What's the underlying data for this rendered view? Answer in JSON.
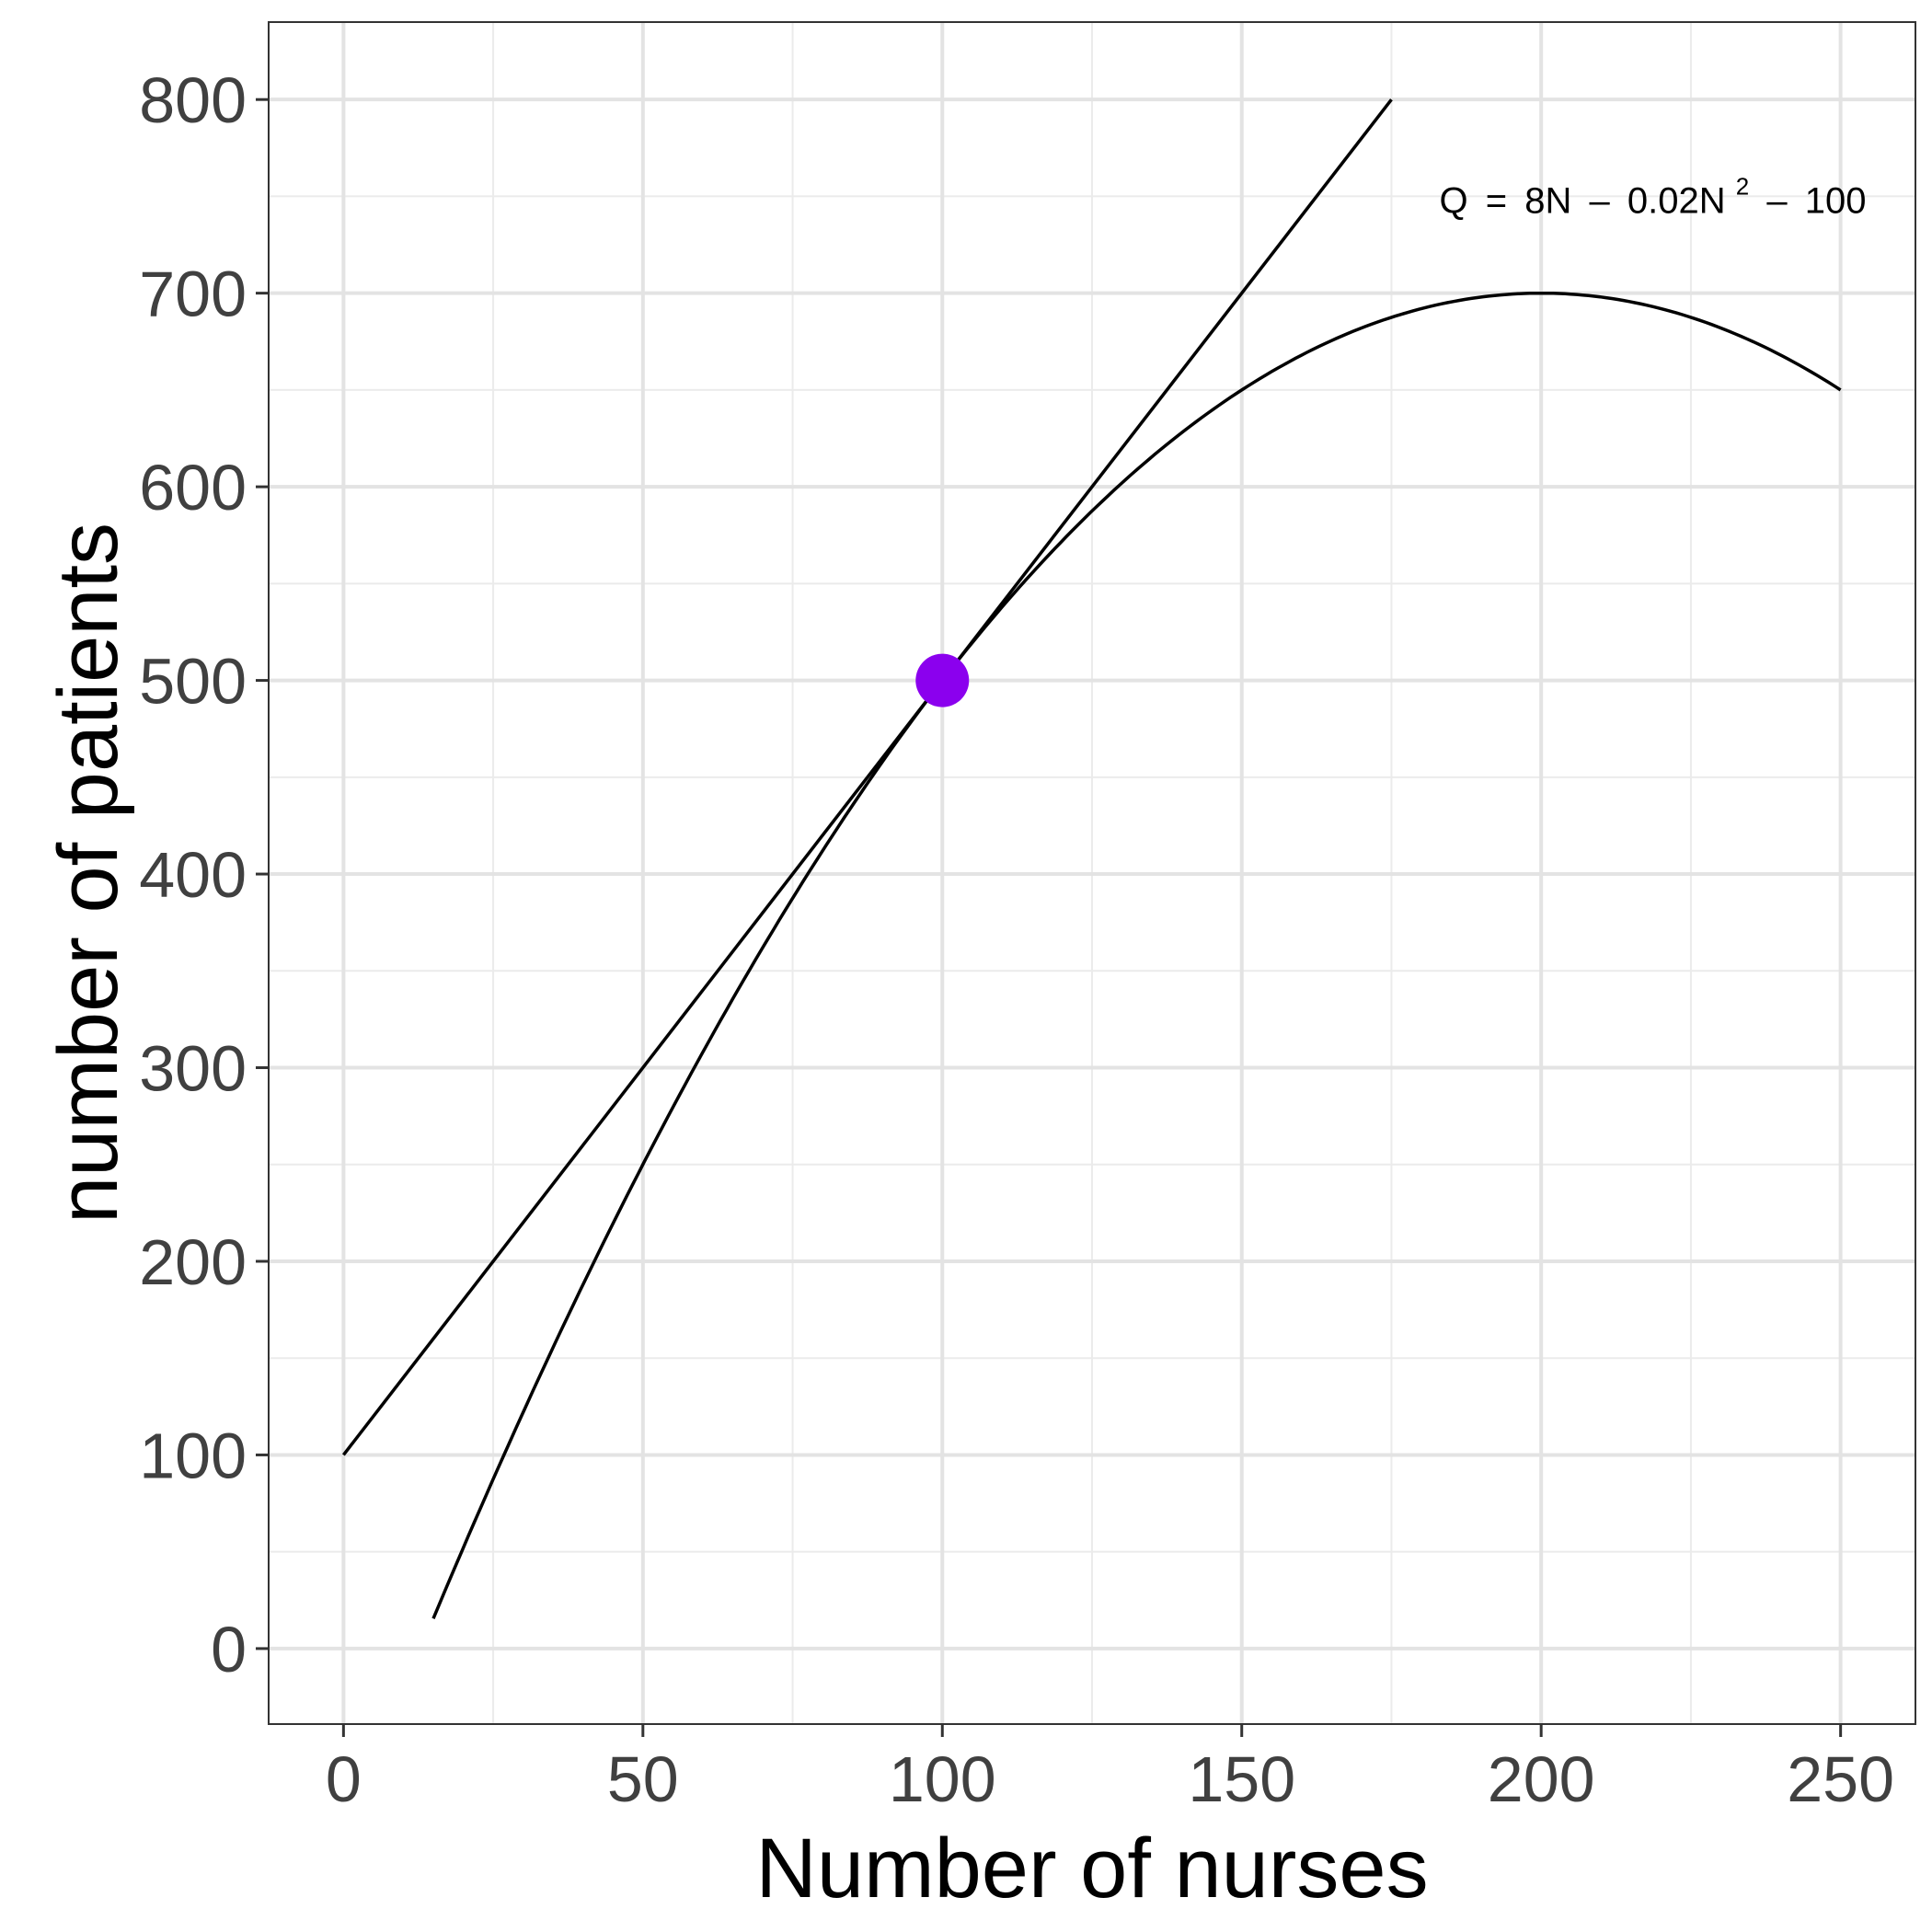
{
  "chart_data": {
    "type": "line",
    "xlabel": "Number of nurses",
    "ylabel": "number of patients",
    "xlim": [
      -12.5,
      262.5
    ],
    "ylim": [
      -39,
      840
    ],
    "x_ticks": [
      0,
      50,
      100,
      150,
      200,
      250
    ],
    "y_ticks": [
      0,
      100,
      200,
      300,
      400,
      500,
      600,
      700,
      800
    ],
    "grid": true,
    "legend": "none",
    "series": [
      {
        "kind": "curve",
        "function": "8N - 0.02N^2 - 100",
        "x_range": [
          15,
          250
        ],
        "color": "#000000"
      },
      {
        "kind": "tangent-line",
        "x": [
          0,
          175
        ],
        "y": [
          100,
          800
        ],
        "color": "#000000"
      }
    ],
    "points": [
      {
        "x": 100,
        "y": 500,
        "color": "#8B00EE"
      }
    ],
    "annotation": {
      "x": 183,
      "y": 748,
      "lhs": "Q",
      "eq": "=",
      "pre": "8N",
      "minus1": "–",
      "mid": "0.02N",
      "sup": "2",
      "minus2": "–",
      "post": "100"
    }
  }
}
